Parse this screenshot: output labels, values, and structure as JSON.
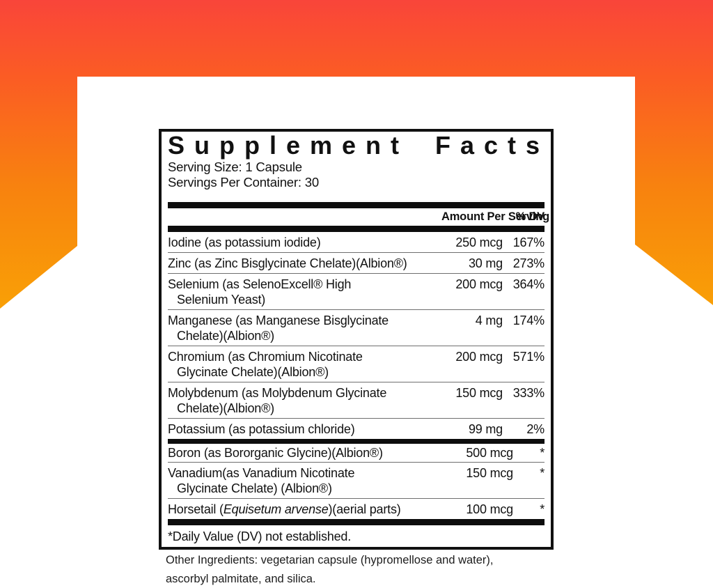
{
  "panel": {
    "title": "Supplement Facts",
    "serving_size": "Serving Size: 1 Capsule",
    "servings_per_container": "Servings Per Container: 30",
    "header": {
      "amount": "Amount Per Serving",
      "dv": "% DV"
    },
    "rows": [
      {
        "name": "Iodine (as potassium iodide)",
        "amount": "250 mcg",
        "dv": "167%"
      },
      {
        "name": "Zinc (as Zinc Bisglycinate Chelate)(Albion®)",
        "amount": "30 mg",
        "dv": "273%"
      },
      {
        "name": "Selenium (as SelenoExcell® High",
        "name2": "Selenium Yeast)",
        "amount": "200 mcg",
        "dv": "364%"
      },
      {
        "name": "Manganese (as Manganese Bisglycinate",
        "name2": "Chelate)(Albion®)",
        "amount": "4 mg",
        "dv": "174%"
      },
      {
        "name": "Chromium (as Chromium Nicotinate",
        "name2": "Glycinate Chelate)(Albion®)",
        "amount": "200 mcg",
        "dv": "571%"
      },
      {
        "name": "Molybdenum (as Molybdenum Glycinate",
        "name2": "Chelate)(Albion®)",
        "amount": "150 mcg",
        "dv": "333%"
      },
      {
        "name": "Potassium (as potassium chloride)",
        "amount": "99 mg",
        "dv": "2%"
      },
      {
        "name": "Boron (as Bororganic Glycine)(Albion®)",
        "amount": "500 mcg",
        "dv": "*"
      },
      {
        "name": "Vanadium(as Vanadium Nicotinate",
        "name2": "Glycinate Chelate) (Albion®)",
        "amount": "150 mcg",
        "dv": "*"
      },
      {
        "name_prefix": "Horsetail (",
        "name_italic": "Equisetum arvense",
        "name_suffix": ")(aerial parts)",
        "amount": "100 mcg",
        "dv": "*"
      }
    ],
    "footnote": "*Daily Value (DV) not established."
  },
  "other_ingredients": {
    "line1": "Other Ingredients: vegetarian capsule (hypromellose and water),",
    "line2": "ascorbyl palmitate, and silica."
  },
  "colors": {
    "grad-top": "#f9453a",
    "grad-mid1": "#fb5c24",
    "grad-mid2": "#f8820f",
    "grad-bottom": "#f9a006",
    "ink": "#111111",
    "hairline": "#6e6e6e",
    "bar": "#0d0d0d"
  }
}
